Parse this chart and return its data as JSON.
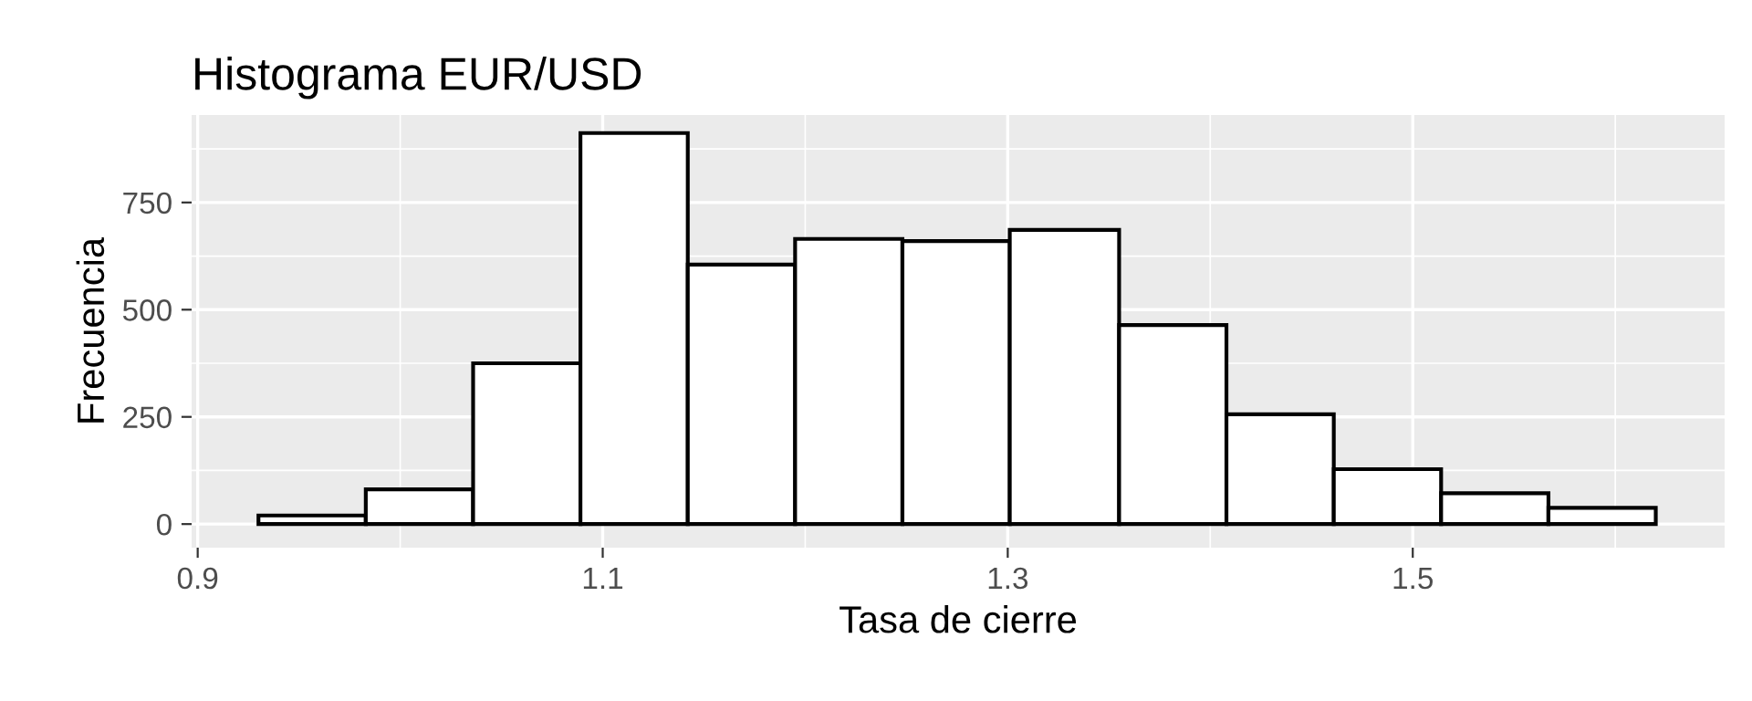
{
  "chart_data": {
    "type": "histogram",
    "title": "Histograma EUR/USD",
    "xlabel": "Tasa de cierre",
    "ylabel": "Frecuencia",
    "bins": [
      0.93,
      0.983,
      1.036,
      1.089,
      1.142,
      1.195,
      1.248,
      1.301,
      1.355,
      1.408,
      1.461,
      1.514,
      1.567,
      1.62
    ],
    "values": [
      20,
      81,
      375,
      912,
      605,
      665,
      660,
      686,
      464,
      256,
      128,
      72,
      38
    ],
    "color": "#ffffff",
    "xlim": [
      0.897,
      1.654
    ],
    "xticks": [
      0.9,
      1.1,
      1.3,
      1.5
    ],
    "ylim": [
      -55,
      954
    ],
    "yticks": [
      0,
      250,
      500,
      750
    ],
    "grid": true
  }
}
